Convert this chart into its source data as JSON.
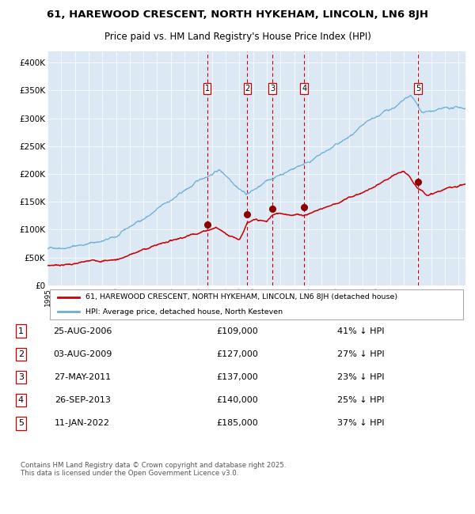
{
  "title": "61, HAREWOOD CRESCENT, NORTH HYKEHAM, LINCOLN, LN6 8JH",
  "subtitle": "Price paid vs. HM Land Registry's House Price Index (HPI)",
  "title_fontsize": 9.5,
  "subtitle_fontsize": 8.5,
  "background_color": "#ffffff",
  "plot_bg_color": "#dce9f5",
  "ylim": [
    0,
    420000
  ],
  "yticks": [
    0,
    50000,
    100000,
    150000,
    200000,
    250000,
    300000,
    350000,
    400000
  ],
  "ytick_labels": [
    "£0",
    "£50K",
    "£100K",
    "£150K",
    "£200K",
    "£250K",
    "£300K",
    "£350K",
    "£400K"
  ],
  "hpi_color": "#6baed6",
  "sale_color": "#cc0000",
  "dashed_line_color": "#cc0000",
  "marker_color": "#8b0000",
  "sale_transactions": [
    {
      "date": 2006.65,
      "price": 109000,
      "label": "1"
    },
    {
      "date": 2009.58,
      "price": 127000,
      "label": "2"
    },
    {
      "date": 2011.4,
      "price": 137000,
      "label": "3"
    },
    {
      "date": 2013.73,
      "price": 140000,
      "label": "4"
    },
    {
      "date": 2022.03,
      "price": 185000,
      "label": "5"
    }
  ],
  "annotation_rows": [
    {
      "num": "1",
      "date": "25-AUG-2006",
      "price": "£109,000",
      "pct": "41% ↓ HPI"
    },
    {
      "num": "2",
      "date": "03-AUG-2009",
      "price": "£127,000",
      "pct": "27% ↓ HPI"
    },
    {
      "num": "3",
      "date": "27-MAY-2011",
      "price": "£137,000",
      "pct": "23% ↓ HPI"
    },
    {
      "num": "4",
      "date": "26-SEP-2013",
      "price": "£140,000",
      "pct": "25% ↓ HPI"
    },
    {
      "num": "5",
      "date": "11-JAN-2022",
      "price": "£185,000",
      "pct": "37% ↓ HPI"
    }
  ],
  "legend_labels": [
    "61, HAREWOOD CRESCENT, NORTH HYKEHAM, LINCOLN, LN6 8JH (detached house)",
    "HPI: Average price, detached house, North Kesteven"
  ],
  "footer": "Contains HM Land Registry data © Crown copyright and database right 2025.\nThis data is licensed under the Open Government Licence v3.0."
}
